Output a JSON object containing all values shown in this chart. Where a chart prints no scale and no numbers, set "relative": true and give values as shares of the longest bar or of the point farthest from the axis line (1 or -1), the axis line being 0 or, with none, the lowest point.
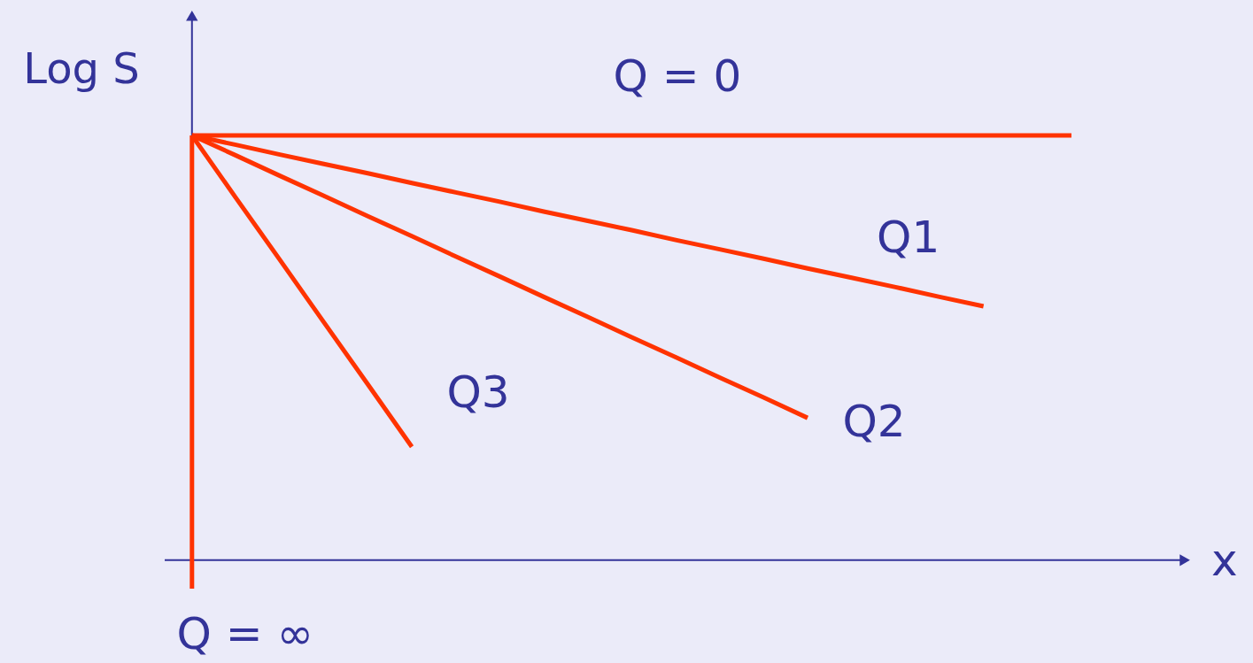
{
  "chart_data": {
    "type": "line",
    "relative": true,
    "xlabel": "x",
    "ylabel": "Log S",
    "line_style": "solid",
    "categories": [
      null,
      null,
      null,
      null,
      null,
      null,
      null,
      null,
      null,
      null,
      null,
      null,
      null,
      null,
      null,
      null,
      null,
      null,
      null,
      null,
      null
    ],
    "series": [
      {
        "name": "Q = 0",
        "color": "#ff3300",
        "values": [
          1.0,
          1.0,
          1.0,
          1.0,
          1.0,
          1.0,
          1.0,
          1.0,
          1.0,
          1.0,
          1.0,
          1.0,
          1.0,
          1.0,
          1.0,
          1.0,
          1.0,
          1.0,
          1.0,
          1.0,
          1.0
        ]
      },
      {
        "name": "Q1",
        "color": "#ff3300",
        "values": [
          1.0,
          0.978,
          0.955,
          0.933,
          0.911,
          0.888,
          0.866,
          0.844,
          0.821,
          0.799,
          0.777,
          0.754,
          0.732,
          0.71,
          0.687,
          0.665,
          0.643,
          0.62,
          0.598,
          null,
          null
        ]
      },
      {
        "name": "Q2",
        "color": "#ff3300",
        "values": [
          1.0,
          0.953,
          0.905,
          0.858,
          0.81,
          0.763,
          0.715,
          0.668,
          0.62,
          0.573,
          0.525,
          0.478,
          0.43,
          0.383,
          0.335,
          null,
          null,
          null,
          null,
          null,
          null
        ]
      },
      {
        "name": "Q3",
        "color": "#ff3300",
        "values": [
          1.0,
          0.853,
          0.707,
          0.56,
          0.414,
          0.267,
          null,
          null,
          null,
          null,
          null,
          null,
          null,
          null,
          null,
          null,
          null,
          null,
          null,
          null,
          null
        ]
      }
    ],
    "annotations": [
      "Q = ∞"
    ]
  }
}
